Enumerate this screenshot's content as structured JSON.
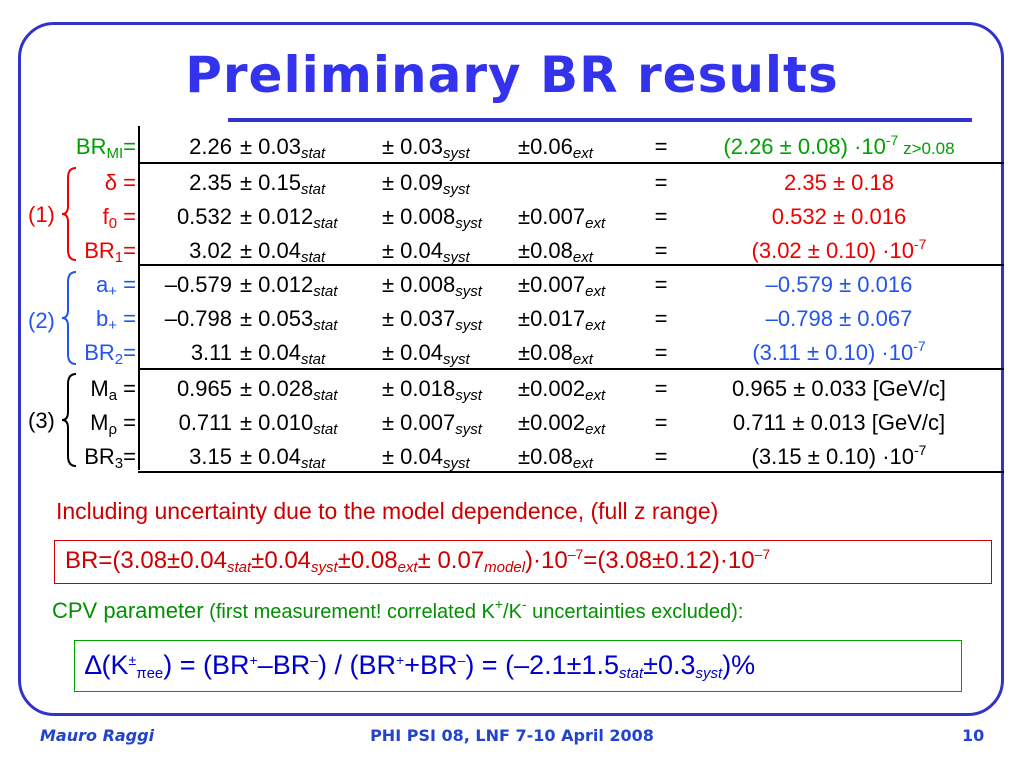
{
  "title": "Preliminary BR results",
  "groups": [
    "(1)",
    "(2)",
    "(3)"
  ],
  "rows": [
    {
      "label": "BR",
      "label_sub": "MI",
      "label_eq": "=",
      "central": "2.26",
      "stat": "0.03",
      "syst": "0.03",
      "ext": "0.06",
      "eq": "=",
      "result": "(2.26 ± 0.08) ·10",
      "result_exp": "-7",
      "result_extra": " z>0.08",
      "color": "#00a000"
    },
    {
      "label": "δ",
      "label_sub": "",
      "label_eq": " =",
      "central": "2.35",
      "stat": "0.15",
      "syst": "0.09",
      "ext": "",
      "eq": "=",
      "result": "2.35 ± 0.18",
      "result_exp": "",
      "result_extra": "",
      "color": "#ee0000"
    },
    {
      "label": "f",
      "label_sub": "0",
      "label_eq": " =",
      "central": "0.532",
      "stat": "0.012",
      "syst": "0.008",
      "ext": "0.007",
      "eq": "=",
      "result": "0.532 ± 0.016",
      "result_exp": "",
      "result_extra": "",
      "color": "#ee0000"
    },
    {
      "label": "BR",
      "label_sub": "1",
      "label_eq": "=",
      "central": "3.02",
      "stat": "0.04",
      "syst": "0.04",
      "ext": "0.08",
      "eq": "=",
      "result": "(3.02 ± 0.10) ·10",
      "result_exp": "-7",
      "result_extra": "",
      "color": "#ee0000"
    },
    {
      "label": "a",
      "label_sub": "+",
      "label_eq": " =",
      "central": "–0.579",
      "stat": "0.012",
      "syst": "0.008",
      "ext": "0.007",
      "eq": "=",
      "result": "–0.579 ± 0.016",
      "result_exp": "",
      "result_extra": "",
      "color": "#2255ee"
    },
    {
      "label": "b",
      "label_sub": "+",
      "label_eq": " =",
      "central": "–0.798",
      "stat": "0.053",
      "syst": "0.037",
      "ext": "0.017",
      "eq": "=",
      "result": "–0.798 ± 0.067",
      "result_exp": "",
      "result_extra": "",
      "color": "#2255ee"
    },
    {
      "label": "BR",
      "label_sub": "2",
      "label_eq": "=",
      "central": "3.11",
      "stat": "0.04",
      "syst": "0.04",
      "ext": "0.08",
      "eq": "=",
      "result": "(3.11 ± 0.10) ·10",
      "result_exp": "-7",
      "result_extra": "",
      "color": "#2255ee"
    },
    {
      "label": "M",
      "label_sub": "a",
      "label_eq": " =",
      "central": "0.965",
      "stat": "0.028",
      "syst": "0.018",
      "ext": "0.002",
      "eq": "=",
      "result": "0.965 ± 0.033  [GeV/c]",
      "result_exp": "",
      "result_extra": "",
      "color": "#000000"
    },
    {
      "label": "M",
      "label_sub": "ρ",
      "label_eq": " =",
      "central": "0.711",
      "stat": "0.010",
      "syst": "0.007",
      "ext": "0.002",
      "eq": "=",
      "result": "0.711 ± 0.013  [GeV/c]",
      "result_exp": "",
      "result_extra": "",
      "color": "#000000"
    },
    {
      "label": "BR",
      "label_sub": "3",
      "label_eq": "=",
      "central": "3.15",
      "stat": "0.04",
      "syst": "0.04",
      "ext": "0.08",
      "eq": "=",
      "result": "(3.15 ± 0.10) ·10",
      "result_exp": "-7",
      "result_extra": "",
      "color": "#000000"
    }
  ],
  "tags": {
    "stat": "stat",
    "syst": "syst",
    "ext": "ext",
    "pm": "±"
  },
  "model_note": "Including uncertainty due to the model dependence, (full z range)",
  "br_box": {
    "p1": "BR=(3.08±0.04",
    "s1": "stat",
    "p2": "±0.04",
    "s2": "syst",
    "p3": "±0.08",
    "s3": "ext",
    "p4": "± 0.07",
    "s4": "model",
    "p5": ")·10",
    "e1": "–7",
    "p6": "=(3.08±0.12)·10",
    "e2": "–7"
  },
  "cpv": {
    "title": "CPV parameter",
    "note_a": " (first measurement! correlated K",
    "note_sup1": "+",
    "note_b": "/K",
    "note_sup2": "-",
    "note_c": " uncertainties excluded):",
    "f1": "∆(K",
    "f_sup_pm": "±",
    "f_sub": "πee",
    "f2": ") = (BR",
    "f_sup1": "+",
    "f3": "–BR",
    "f_sup2": "–",
    "f4": ") / (BR",
    "f_sup3": "+",
    "f5": "+BR",
    "f_sup4": "–",
    "f6": ") = (–2.1±1.5",
    "f_sub_stat": "stat",
    "f7": "±0.3",
    "f_sub_syst": "syst",
    "f8": ")%"
  },
  "footer": {
    "author": "Mauro Raggi",
    "conference": "PHI PSI 08, LNF 7-10 April 2008",
    "page": "10"
  }
}
